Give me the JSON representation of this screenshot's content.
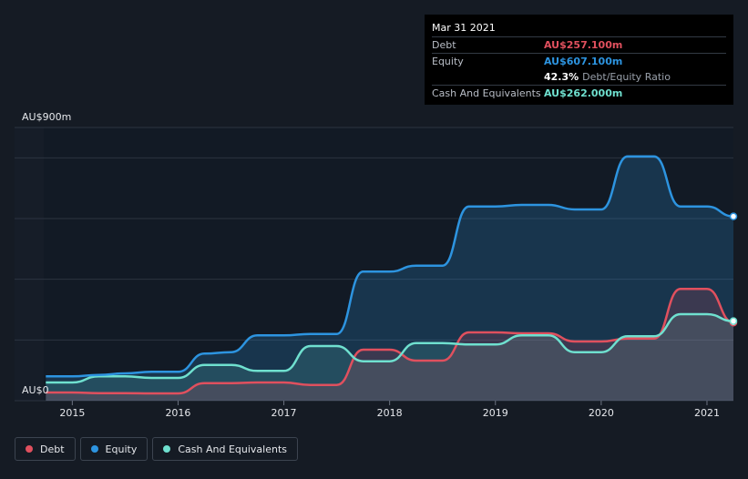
{
  "tooltip": {
    "date": "Mar 31 2021",
    "debt_label": "Debt",
    "debt_value": "AU$257.100m",
    "equity_label": "Equity",
    "equity_value": "AU$607.100m",
    "ratio_value": "42.3%",
    "ratio_label": "Debt/Equity Ratio",
    "cash_label": "Cash And Equivalents",
    "cash_value": "AU$262.000m"
  },
  "legend": [
    {
      "label": "Debt",
      "color": "#e0505e"
    },
    {
      "label": "Equity",
      "color": "#2d94e0"
    },
    {
      "label": "Cash And Equivalents",
      "color": "#6fe0cf"
    }
  ],
  "chart_data": {
    "type": "line",
    "y_top_label": "AU$900m",
    "y_bottom_label": "AU$0",
    "ylim": [
      0,
      900
    ],
    "xlim": [
      2014.73,
      2021.25
    ],
    "x_ticks": [
      2015,
      2016,
      2017,
      2018,
      2019,
      2020,
      2021
    ],
    "x_tick_labels": [
      "2015",
      "2016",
      "2017",
      "2018",
      "2019",
      "2020",
      "2021"
    ],
    "series": [
      {
        "name": "Equity",
        "color": "#2d94e0",
        "x": [
          2014.75,
          2015.0,
          2015.25,
          2015.5,
          2015.75,
          2016.0,
          2016.25,
          2016.5,
          2016.75,
          2017.0,
          2017.25,
          2017.5,
          2017.75,
          2018.0,
          2018.25,
          2018.5,
          2018.75,
          2019.0,
          2019.25,
          2019.5,
          2019.75,
          2020.0,
          2020.25,
          2020.5,
          2020.75,
          2021.0,
          2021.25
        ],
        "y": [
          80,
          80,
          85,
          90,
          95,
          95,
          155,
          160,
          215,
          215,
          220,
          220,
          425,
          425,
          445,
          445,
          640,
          640,
          645,
          645,
          630,
          630,
          805,
          805,
          640,
          640,
          607.1
        ]
      },
      {
        "name": "Debt",
        "color": "#e0505e",
        "x": [
          2014.75,
          2015.0,
          2015.25,
          2015.5,
          2015.75,
          2016.0,
          2016.25,
          2016.5,
          2016.75,
          2017.0,
          2017.25,
          2017.5,
          2017.75,
          2018.0,
          2018.25,
          2018.5,
          2018.75,
          2019.0,
          2019.25,
          2019.5,
          2019.75,
          2020.0,
          2020.25,
          2020.5,
          2020.75,
          2021.0,
          2021.25
        ],
        "y": [
          27,
          27,
          25,
          25,
          24,
          24,
          58,
          58,
          60,
          60,
          52,
          52,
          168,
          168,
          132,
          132,
          225,
          225,
          222,
          222,
          195,
          195,
          205,
          205,
          368,
          368,
          257.1
        ]
      },
      {
        "name": "Cash And Equivalents",
        "color": "#6fe0cf",
        "x": [
          2014.75,
          2015.0,
          2015.25,
          2015.5,
          2015.75,
          2016.0,
          2016.25,
          2016.5,
          2016.75,
          2017.0,
          2017.25,
          2017.5,
          2017.75,
          2018.0,
          2018.25,
          2018.5,
          2018.75,
          2019.0,
          2019.25,
          2019.5,
          2019.75,
          2020.0,
          2020.25,
          2020.5,
          2020.75,
          2021.0,
          2021.25
        ],
        "y": [
          60,
          60,
          80,
          80,
          75,
          75,
          118,
          118,
          98,
          98,
          180,
          180,
          130,
          130,
          190,
          190,
          185,
          185,
          215,
          215,
          160,
          160,
          212,
          212,
          285,
          285,
          262
        ]
      }
    ],
    "legend_position": "bottom-left",
    "grid": true
  }
}
